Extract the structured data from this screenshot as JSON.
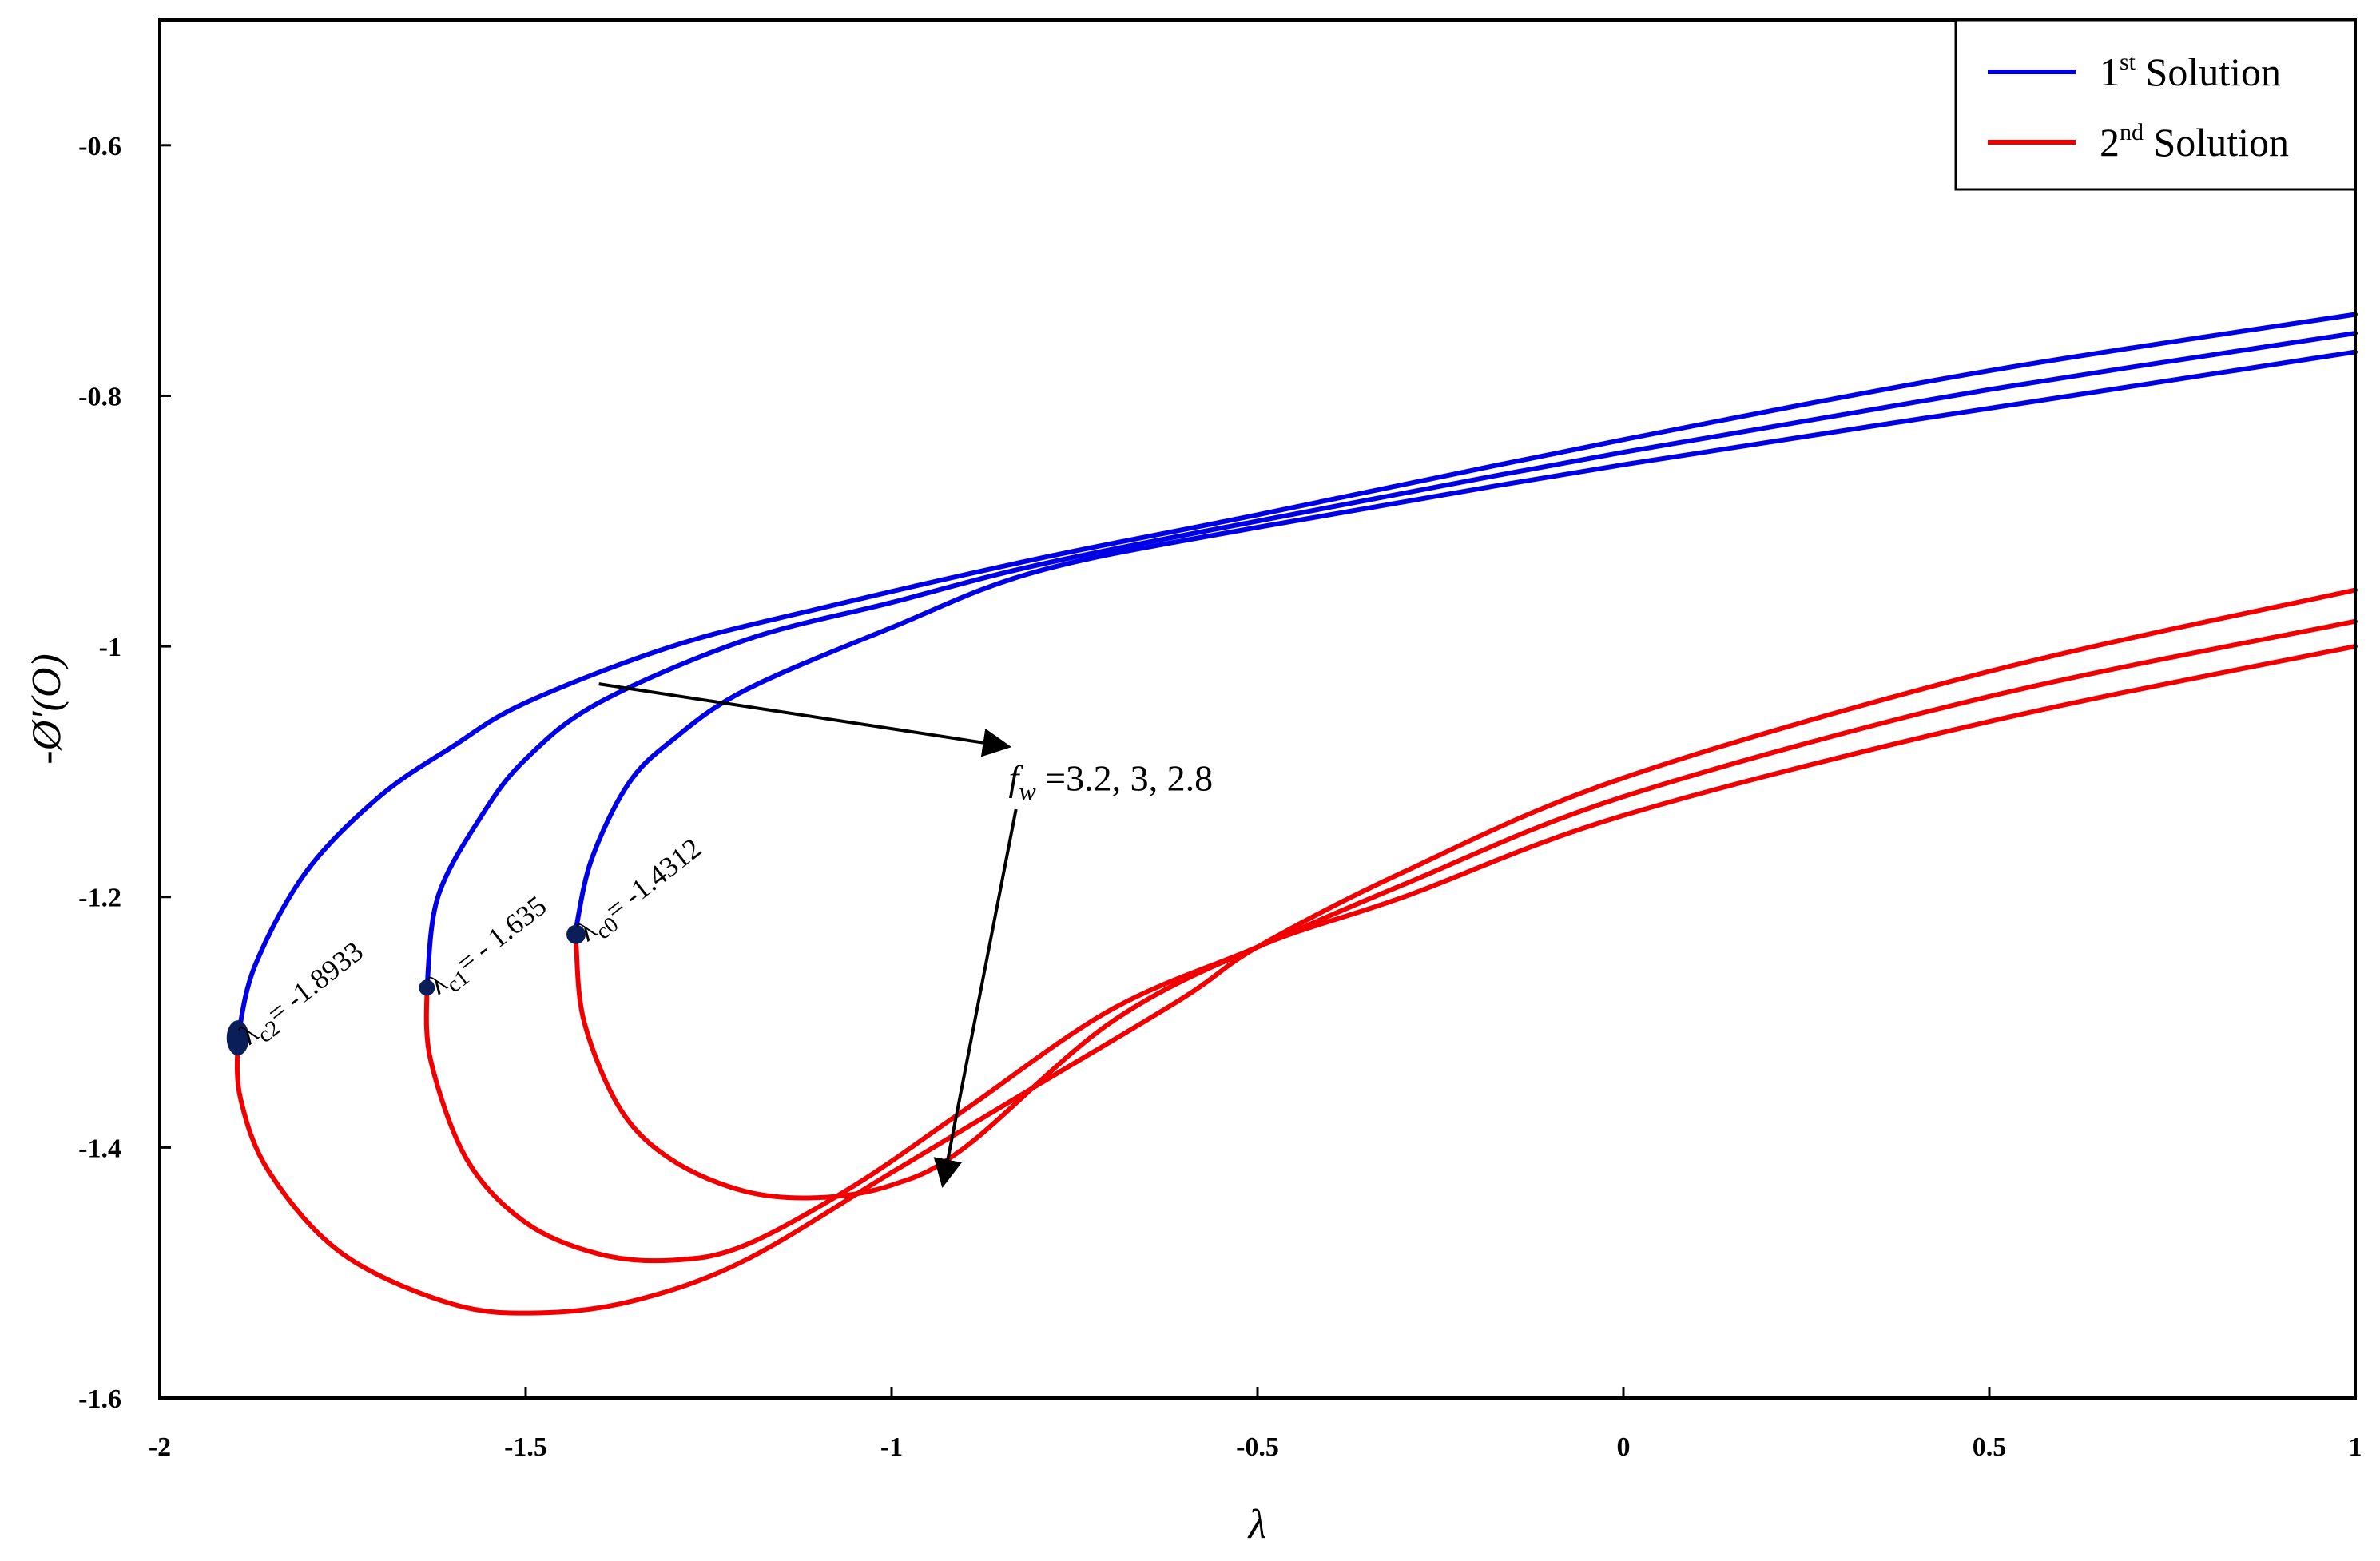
{
  "chart_data": {
    "type": "line",
    "xlabel": "λ",
    "ylabel": "-Ø′(O)",
    "xlim": [
      -2,
      1
    ],
    "ylim": [
      -1.6,
      -0.5
    ],
    "x_ticks": [
      "-2",
      "-1.5",
      "-1",
      "-0.5",
      "0",
      "0.5",
      "1"
    ],
    "y_ticks": [
      "-0.6",
      "-0.8",
      "-1",
      "-1.2",
      "-1.4",
      "-1.6"
    ],
    "grid": false,
    "legend": {
      "placement": "top-right",
      "entries": [
        {
          "base": "1",
          "sup": "st",
          "rest": " Solution",
          "color": "#0000e6"
        },
        {
          "base": "2",
          "sup": "nd",
          "rest": " Solution",
          "color": "#f00000"
        }
      ]
    },
    "series": [
      {
        "values": [
          [
            -1.8933,
            -1.3125
          ],
          [
            -1.87,
            -1.255
          ],
          [
            -1.8,
            -1.18
          ],
          [
            -1.7,
            -1.12
          ],
          [
            -1.6,
            -1.08
          ],
          [
            -1.5,
            -1.045
          ],
          [
            -1.3,
            -1.0
          ],
          [
            -1.1,
            -0.97
          ],
          [
            -0.8,
            -0.93
          ],
          [
            -0.5,
            -0.895
          ],
          [
            0,
            -0.835
          ],
          [
            0.5,
            -0.78
          ],
          [
            1,
            -0.735
          ]
        ]
      },
      {
        "values": [
          [
            -1.635,
            -1.2725
          ],
          [
            -1.62,
            -1.2
          ],
          [
            -1.56,
            -1.135
          ],
          [
            -1.5,
            -1.09
          ],
          [
            -1.4,
            -1.045
          ],
          [
            -1.2,
            -0.995
          ],
          [
            -1.0,
            -0.965
          ],
          [
            -0.8,
            -0.935
          ],
          [
            -0.5,
            -0.9
          ],
          [
            0,
            -0.845
          ],
          [
            0.5,
            -0.795
          ],
          [
            1,
            -0.75
          ]
        ]
      },
      {
        "values": [
          [
            -1.4312,
            -1.225
          ],
          [
            -1.41,
            -1.17
          ],
          [
            -1.36,
            -1.11
          ],
          [
            -1.3,
            -1.075
          ],
          [
            -1.2,
            -1.035
          ],
          [
            -1.0,
            -0.985
          ],
          [
            -0.8,
            -0.94
          ],
          [
            -0.5,
            -0.905
          ],
          [
            0,
            -0.855
          ],
          [
            0.5,
            -0.81
          ],
          [
            1,
            -0.765
          ]
        ]
      },
      {
        "values": [
          [
            -1.8933,
            -1.3125
          ],
          [
            -1.89,
            -1.36
          ],
          [
            -1.85,
            -1.42
          ],
          [
            -1.75,
            -1.485
          ],
          [
            -1.6,
            -1.525
          ],
          [
            -1.48,
            -1.532
          ],
          [
            -1.35,
            -1.522
          ],
          [
            -1.2,
            -1.49
          ],
          [
            -1.0,
            -1.42
          ],
          [
            -0.8,
            -1.35
          ],
          [
            -0.6,
            -1.28
          ],
          [
            -0.5,
            -1.24
          ],
          [
            -0.3,
            -1.18
          ],
          [
            0,
            -1.105
          ],
          [
            0.5,
            -1.02
          ],
          [
            1,
            -0.955
          ]
        ]
      },
      {
        "values": [
          [
            -1.635,
            -1.2725
          ],
          [
            -1.63,
            -1.33
          ],
          [
            -1.58,
            -1.41
          ],
          [
            -1.5,
            -1.46
          ],
          [
            -1.4,
            -1.485
          ],
          [
            -1.3,
            -1.49
          ],
          [
            -1.2,
            -1.478
          ],
          [
            -1.05,
            -1.43
          ],
          [
            -0.9,
            -1.37
          ],
          [
            -0.7,
            -1.29
          ],
          [
            -0.5,
            -1.24
          ],
          [
            -0.3,
            -1.19
          ],
          [
            0,
            -1.12
          ],
          [
            0.5,
            -1.04
          ],
          [
            1,
            -0.98
          ]
        ]
      },
      {
        "values": [
          [
            -1.4312,
            -1.2375
          ],
          [
            -1.42,
            -1.3
          ],
          [
            -1.37,
            -1.37
          ],
          [
            -1.3,
            -1.41
          ],
          [
            -1.2,
            -1.435
          ],
          [
            -1.1,
            -1.44
          ],
          [
            -1.0,
            -1.43
          ],
          [
            -0.9,
            -1.4
          ],
          [
            -0.7,
            -1.3
          ],
          [
            -0.5,
            -1.24
          ],
          [
            -0.3,
            -1.2
          ],
          [
            0,
            -1.135
          ],
          [
            0.5,
            -1.06
          ],
          [
            1,
            -1.0
          ]
        ]
      }
    ],
    "critical_points": [
      {
        "x": -1.8933,
        "y": -1.3125,
        "label": "λ",
        "sub": "c2",
        "value": "= -1.8933"
      },
      {
        "x": -1.635,
        "y": -1.2725,
        "label": "λ",
        "sub": "c1",
        "value": "= - 1.635"
      },
      {
        "x": -1.4312,
        "y": -1.23,
        "label": "λ",
        "sub": "c0",
        "value": "= -1.4312"
      }
    ],
    "annotation": {
      "var": "f",
      "sub": "w",
      "text": " =3.2, 3, 2.8",
      "arrows": [
        {
          "from": [
            -1.4,
            -1.03
          ],
          "to": [
            -0.84,
            -1.08
          ]
        },
        {
          "from": [
            -0.83,
            -1.13
          ],
          "to": [
            -0.93,
            -1.43
          ]
        }
      ]
    }
  }
}
